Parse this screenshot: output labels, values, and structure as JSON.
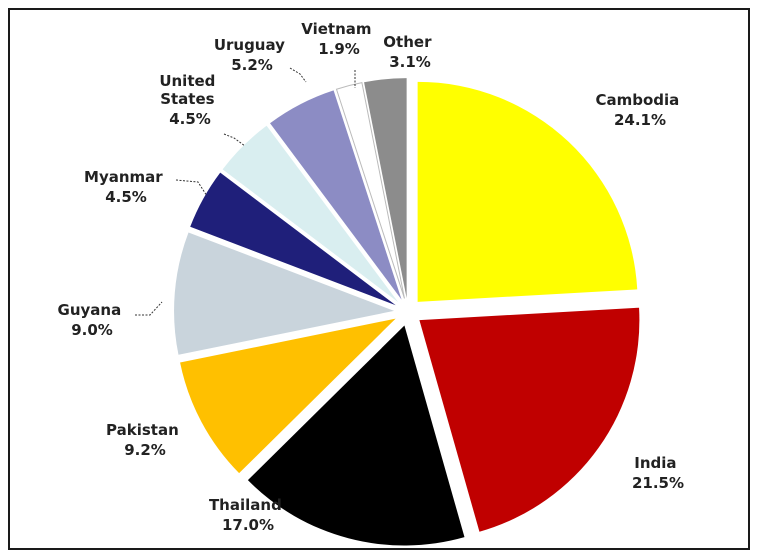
{
  "chart_data": {
    "type": "pie",
    "slices": [
      {
        "label": "Cambodia",
        "value": 24.1,
        "value_label": "24.1%",
        "color": "#ffff00"
      },
      {
        "label": "India",
        "value": 21.5,
        "value_label": "21.5%",
        "color": "#c00000"
      },
      {
        "label": "Thailand",
        "value": 17.0,
        "value_label": "17.0%",
        "color": "#000000"
      },
      {
        "label": "Pakistan",
        "value": 9.2,
        "value_label": "9.2%",
        "color": "#ffc000"
      },
      {
        "label": "Guyana",
        "value": 9.0,
        "value_label": "9.0%",
        "color": "#c9d4dc"
      },
      {
        "label": "Myanmar",
        "value": 4.5,
        "value_label": "4.5%",
        "color": "#1f1f7a"
      },
      {
        "label": "United States",
        "value": 4.5,
        "value_label": "4.5%",
        "color": "#d9eef0"
      },
      {
        "label": "Uruguay",
        "value": 5.2,
        "value_label": "5.2%",
        "color": "#8c8cc4"
      },
      {
        "label": "Vietnam",
        "value": 1.9,
        "value_label": "1.9%",
        "color": "#ffffff"
      },
      {
        "label": "Other",
        "value": 3.1,
        "value_label": "3.1%",
        "color": "#8c8c8c"
      }
    ],
    "start_angle_deg": 0,
    "direction": "clockwise",
    "exploded": true
  }
}
